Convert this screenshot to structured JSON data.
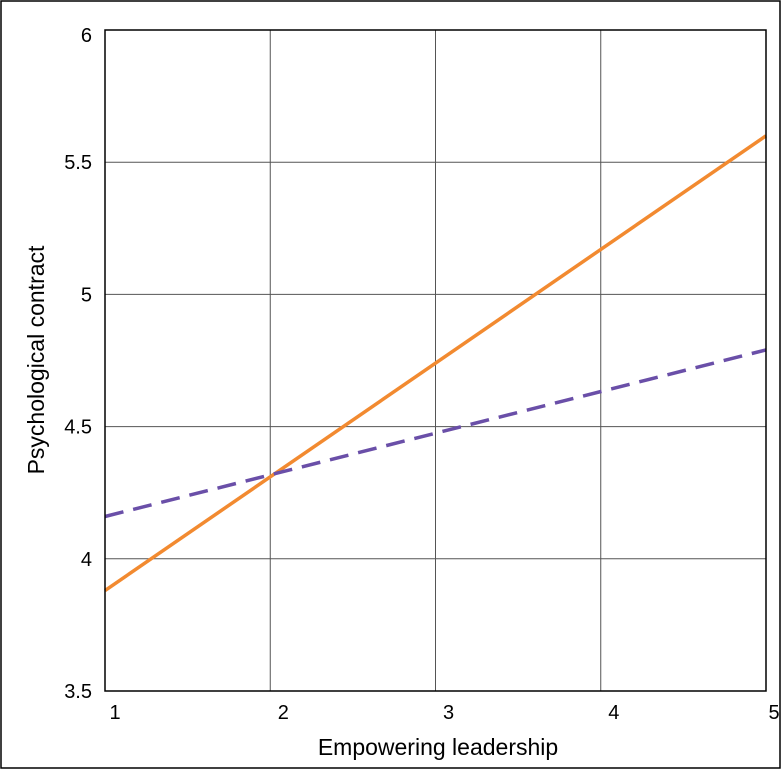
{
  "chart_data": {
    "type": "line",
    "title": "",
    "xlabel": "Empowering leadership",
    "ylabel": "Psychological contract",
    "xlim": [
      1,
      5
    ],
    "ylim": [
      3.5,
      6
    ],
    "x_ticks": [
      1,
      2,
      3,
      4,
      5
    ],
    "y_ticks": [
      3.5,
      4,
      4.5,
      5,
      5.5,
      6
    ],
    "x_tick_labels": [
      "1",
      "2",
      "3",
      "4",
      "5"
    ],
    "y_tick_labels": [
      "3.5",
      "4",
      "4.5",
      "5",
      "5.5",
      "6"
    ],
    "grid": true,
    "legend": "none",
    "x": [
      1,
      5
    ],
    "series": [
      {
        "values": [
          3.88,
          5.6
        ],
        "color": "#F28A30",
        "style": "solid"
      },
      {
        "values": [
          4.16,
          4.79
        ],
        "color": "#6A4FA8",
        "style": "dashed"
      }
    ]
  }
}
